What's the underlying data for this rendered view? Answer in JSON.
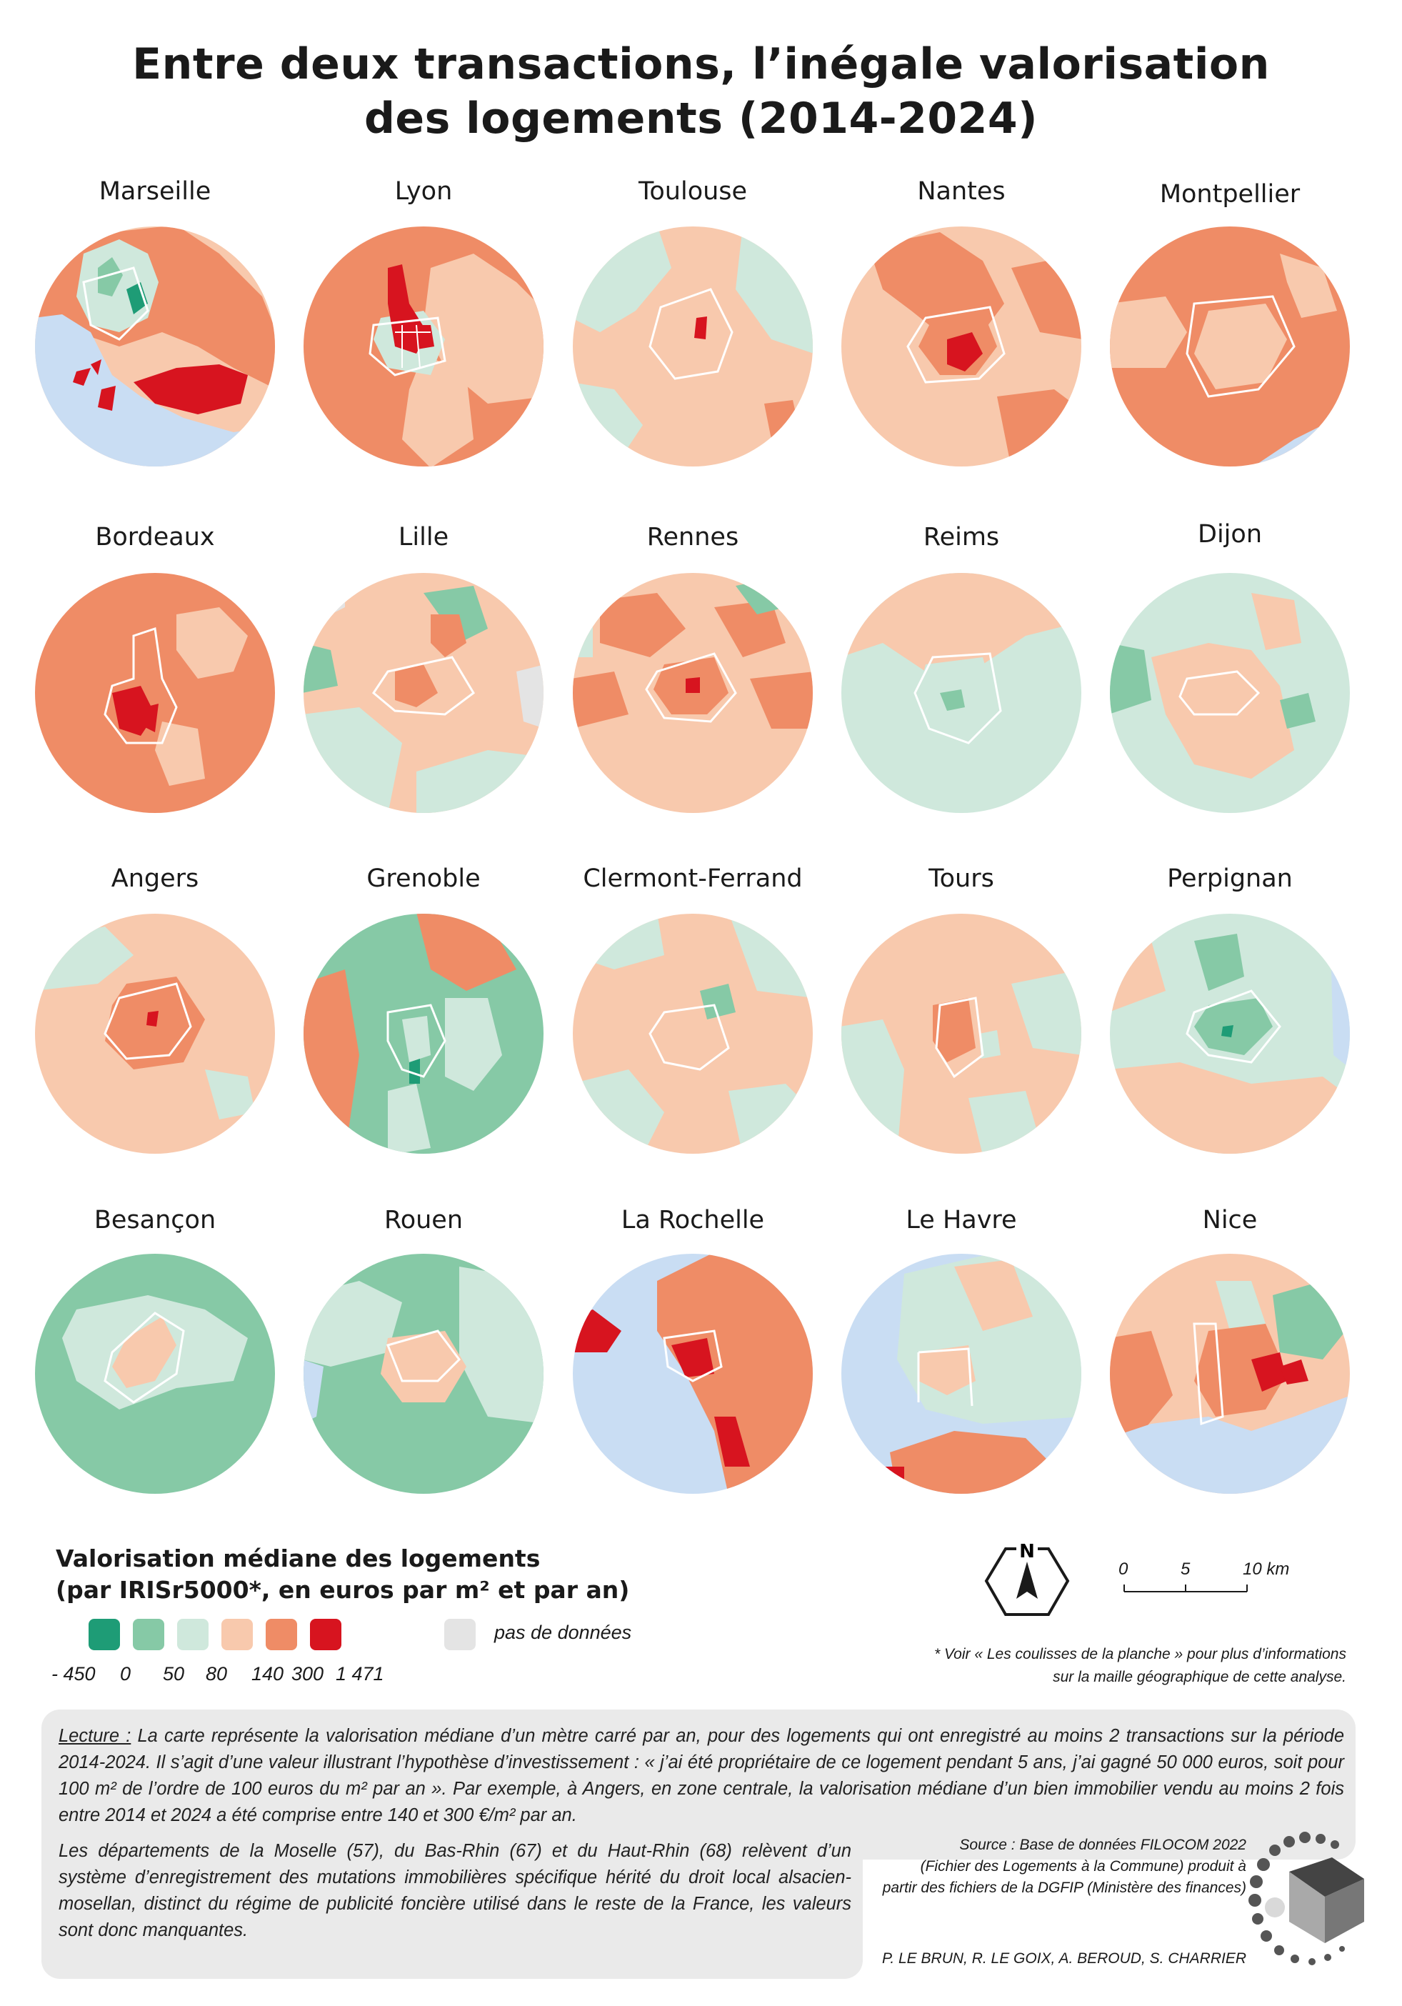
{
  "title_line1": "Entre deux transactions, l’inégale valorisation",
  "title_line2": "des logements (2014-2024)",
  "cities": [
    "Marseille",
    "Lyon",
    "Toulouse",
    "Nantes",
    "Montpellier",
    "Bordeaux",
    "Lille",
    "Rennes",
    "Reims",
    "Dijon",
    "Angers",
    "Grenoble",
    "Clermont-Ferrand",
    "Tours",
    "Perpignan",
    "Besançon",
    "Rouen",
    "La Rochelle",
    "Le Havre",
    "Nice"
  ],
  "legend": {
    "title_line1": "Valorisation médiane des logements",
    "title_line2": "(par IRISr5000*, en euros par m² et par an)",
    "ticks": [
      "- 450",
      "0",
      "50",
      "80",
      "140",
      "300",
      "1 471"
    ],
    "classes": [
      {
        "color": "#1e9c76"
      },
      {
        "color": "#86c9a6"
      },
      {
        "color": "#cfe8dc"
      },
      {
        "color": "#f8c9ad"
      },
      {
        "color": "#ef8c66"
      },
      {
        "color": "#d7141f"
      }
    ],
    "nodata_label": "pas de données",
    "nodata_color": "#e4e4e4",
    "water_color": "#c9ddf3"
  },
  "north_label": "N",
  "scale": {
    "labels": [
      "0",
      "5",
      "10 km"
    ]
  },
  "footnote_line1": "* Voir « Les coulisses de la planche » pour plus d’informations",
  "footnote_line2": "sur la maille géographique de cette analyse.",
  "reading": {
    "label": "Lecture :",
    "text": " La carte représente la valorisation médiane d’un mètre carré par an, pour des logements qui ont enregistré au moins 2 transactions sur la période 2014-2024. Il s’agit d’une valeur illustrant l’hypothèse d’investissement : « j’ai été propriétaire de ce logement pendant 5 ans, j’ai gagné 50 000 euros, soit pour 100 m² de l’ordre de 100 euros du m² par an ».  Par exemple, à Angers, en zone centrale, la valorisation médiane d’un bien immobilier vendu au moins 2 fois entre 2014 et 2024 a été comprise entre 140 et 300 €/m² par an."
  },
  "alsace_note": "Les départements de la Moselle (57), du Bas-Rhin (67) et du Haut-Rhin (68) relèvent d’un système d’enregistrement des mutations immobilières spécifique hérité du droit local alsacien-mosellan, distinct du régime de publicité foncière utilisé dans le reste de la France, les valeurs sont donc manquantes.",
  "source_line1": "Source : Base de données FILOCOM 2022",
  "source_line2": "(Fichier des Logements à la Commune) produit à",
  "source_line3": "partir des fichiers de la DGFIP (Ministère des finances)",
  "authors": "P. LE BRUN, R. LE GOIX, A. BEROUD, S. CHARRIER"
}
